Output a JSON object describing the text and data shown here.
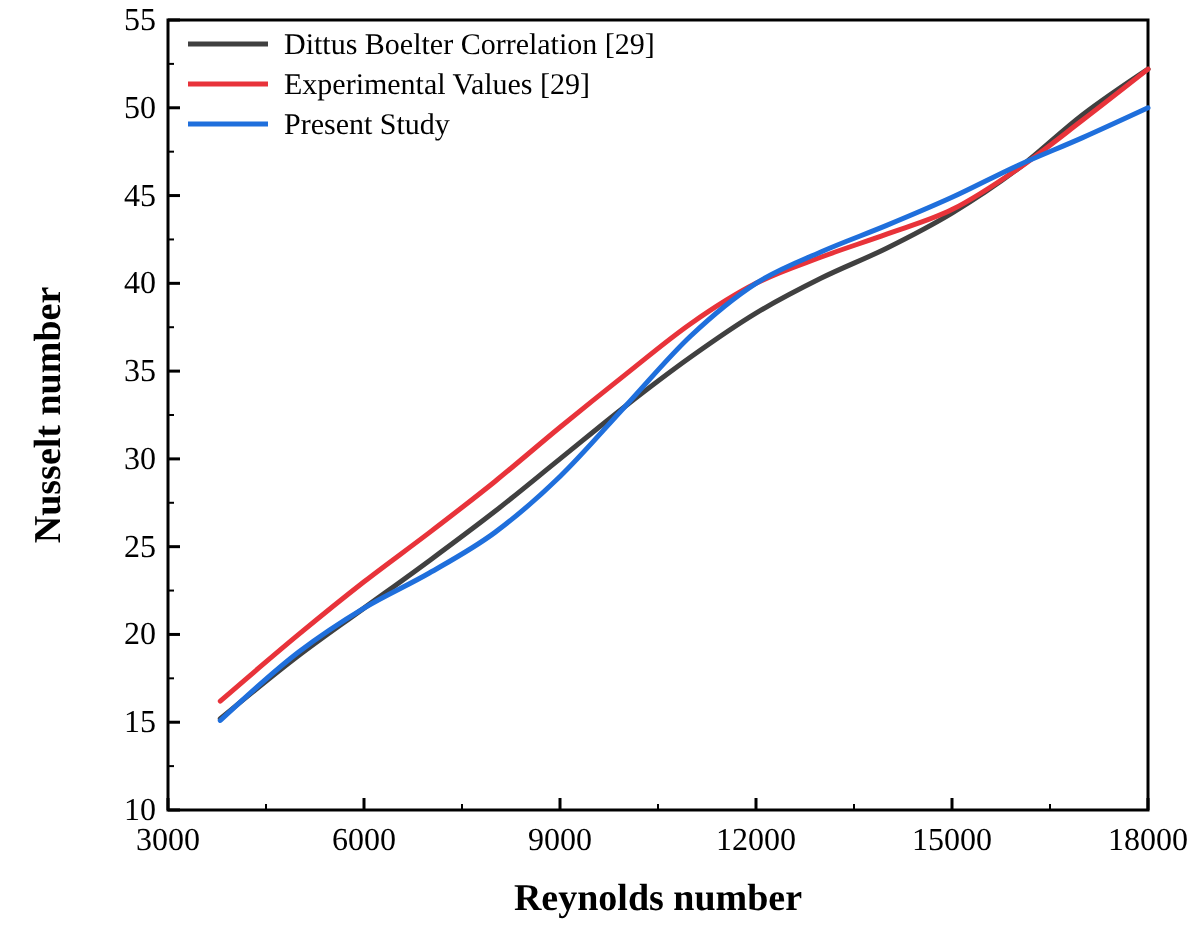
{
  "chart_data": {
    "type": "line",
    "xlabel": "Reynolds number",
    "ylabel": "Nusselt number",
    "x": [
      3800,
      5000,
      6000,
      7000,
      8000,
      9000,
      10000,
      11000,
      12000,
      13000,
      14000,
      15000,
      16000,
      17000,
      18000
    ],
    "series": [
      {
        "name": "Dittus Boelter Correlation [29]",
        "color": "#404040",
        "values": [
          15.2,
          18.8,
          21.5,
          24.2,
          27,
          30,
          33,
          35.8,
          38.3,
          40.3,
          42,
          44,
          46.5,
          49.6,
          52.2
        ]
      },
      {
        "name": "Experimental Values [29]",
        "color": "#e8333a",
        "values": [
          16.2,
          20,
          23,
          25.8,
          28.7,
          31.8,
          34.8,
          37.7,
          40,
          41.5,
          42.8,
          44.2,
          46.5,
          49.3,
          52.2
        ]
      },
      {
        "name": "Present Study",
        "color": "#1f6fdc",
        "values": [
          15.1,
          19,
          21.5,
          23.5,
          25.8,
          29,
          33,
          37,
          40,
          41.8,
          43.3,
          44.9,
          46.7,
          48.3,
          50
        ]
      }
    ],
    "xlim": [
      3000,
      18000
    ],
    "xticks": [
      3000,
      6000,
      9000,
      12000,
      15000,
      18000
    ],
    "ylim": [
      10,
      55
    ],
    "yticks": [
      10,
      15,
      20,
      25,
      30,
      35,
      40,
      45,
      50,
      55
    ],
    "legend": "top left",
    "marker": "none",
    "line_style": "solid",
    "grid": false
  }
}
